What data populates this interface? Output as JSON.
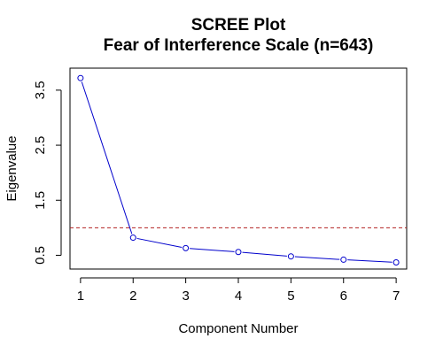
{
  "chart_data": {
    "type": "line",
    "title": [
      "SCREE Plot",
      "Fear of Interference Scale (n=643)"
    ],
    "xlabel": "Component Number",
    "ylabel": "Eigenvalue",
    "x": [
      1,
      2,
      3,
      4,
      5,
      6,
      7
    ],
    "series": [
      {
        "values": [
          3.72,
          0.82,
          0.63,
          0.56,
          0.48,
          0.42,
          0.37
        ],
        "color": "#0000cc",
        "marker": "open-circle"
      }
    ],
    "reference_line": {
      "y": 1.0,
      "style": "dashed",
      "color": "#b22222"
    },
    "xlim": [
      0.8,
      7.2
    ],
    "ylim": [
      0.25,
      3.9
    ],
    "x_ticks": [
      1,
      2,
      3,
      4,
      5,
      6,
      7
    ],
    "x_tick_labels": [
      "1",
      "2",
      "3",
      "4",
      "5",
      "6",
      "7"
    ],
    "y_ticks": [
      0.5,
      1.5,
      2.5,
      3.5
    ],
    "y_tick_labels": [
      "0.5",
      "1.5",
      "2.5",
      "3.5"
    ],
    "grid": false,
    "legend": "none"
  }
}
